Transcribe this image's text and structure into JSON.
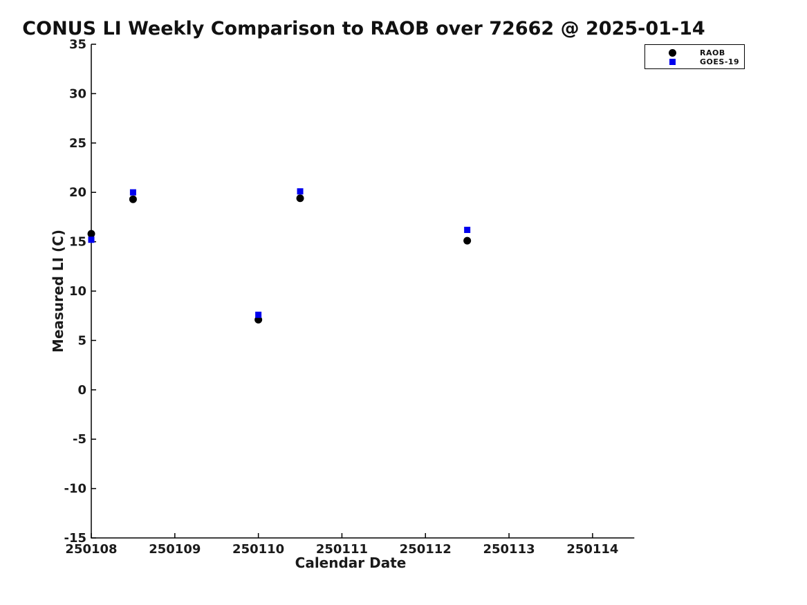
{
  "chart_data": {
    "type": "scatter",
    "title": "CONUS LI Weekly Comparison to RAOB over 72662 @ 2025-01-14",
    "xlabel": "Calendar Date",
    "ylabel": "Measured LI (C)",
    "xlim": [
      250108,
      250114.5
    ],
    "ylim": [
      -15,
      35
    ],
    "grid": false,
    "legend_position": "top-right-outside-plot",
    "x_ticks": [
      {
        "value": 250108,
        "label": "250108"
      },
      {
        "value": 250109,
        "label": "250109"
      },
      {
        "value": 250110,
        "label": "250110"
      },
      {
        "value": 250111,
        "label": "250111"
      },
      {
        "value": 250112,
        "label": "250112"
      },
      {
        "value": 250113,
        "label": "250113"
      },
      {
        "value": 250114,
        "label": "250114"
      }
    ],
    "y_ticks": [
      {
        "value": 35,
        "label": "35"
      },
      {
        "value": 30,
        "label": "30"
      },
      {
        "value": 25,
        "label": "25"
      },
      {
        "value": 20,
        "label": "20"
      },
      {
        "value": 15,
        "label": "15"
      },
      {
        "value": 10,
        "label": "10"
      },
      {
        "value": 5,
        "label": "5"
      },
      {
        "value": 0,
        "label": "0"
      },
      {
        "value": -5,
        "label": "-5"
      },
      {
        "value": -10,
        "label": "-10"
      },
      {
        "value": -15,
        "label": "-15"
      }
    ],
    "series": [
      {
        "name": "RAOB",
        "marker": "circle",
        "color": "#000000",
        "points": [
          [
            250108.0,
            15.8
          ],
          [
            250108.5,
            19.3
          ],
          [
            250110.0,
            7.1
          ],
          [
            250110.5,
            19.4
          ],
          [
            250112.5,
            15.1
          ]
        ]
      },
      {
        "name": "GOES-19",
        "marker": "square",
        "color": "#0000ee",
        "points": [
          [
            250108.0,
            15.2
          ],
          [
            250108.5,
            20.0
          ],
          [
            250110.0,
            7.6
          ],
          [
            250110.5,
            20.1
          ],
          [
            250112.5,
            16.2
          ]
        ]
      }
    ]
  }
}
